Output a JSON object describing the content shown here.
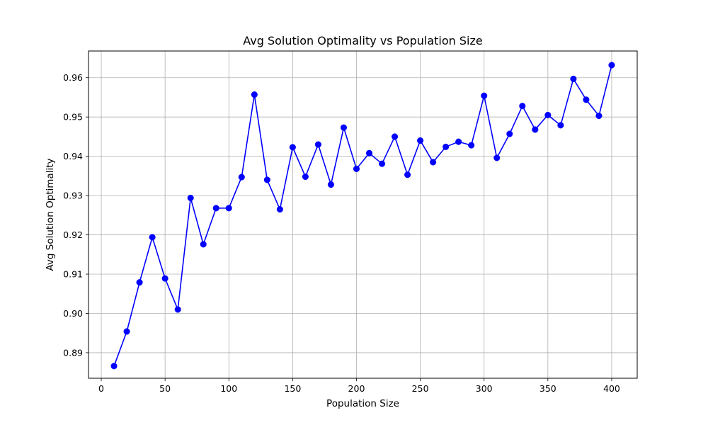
{
  "chart_data": {
    "type": "line",
    "title": "Avg Solution Optimality vs Population Size",
    "xlabel": "Population Size",
    "ylabel": "Avg Solution Optimality",
    "xlim": [
      -10,
      420
    ],
    "ylim": [
      0.8835,
      0.9668
    ],
    "xticks": [
      0,
      50,
      100,
      150,
      200,
      250,
      300,
      350,
      400
    ],
    "xtick_labels": [
      "0",
      "50",
      "100",
      "150",
      "200",
      "250",
      "300",
      "350",
      "400"
    ],
    "yticks": [
      0.89,
      0.9,
      0.91,
      0.92,
      0.93,
      0.94,
      0.95,
      0.96
    ],
    "ytick_labels": [
      "0.89",
      "0.90",
      "0.91",
      "0.92",
      "0.93",
      "0.94",
      "0.95",
      "0.96"
    ],
    "grid": true,
    "series": [
      {
        "color": "#0000ff",
        "marker": "circle",
        "x": [
          10,
          20,
          30,
          40,
          50,
          60,
          70,
          80,
          90,
          100,
          110,
          120,
          130,
          140,
          150,
          160,
          170,
          180,
          190,
          200,
          210,
          220,
          230,
          240,
          250,
          260,
          270,
          280,
          290,
          300,
          310,
          320,
          330,
          340,
          350,
          360,
          370,
          380,
          390,
          400
        ],
        "y": [
          0.8866,
          0.8954,
          0.9079,
          0.9194,
          0.9089,
          0.901,
          0.9294,
          0.9176,
          0.9268,
          0.9268,
          0.9347,
          0.9557,
          0.934,
          0.9265,
          0.9423,
          0.9348,
          0.943,
          0.9328,
          0.9473,
          0.9368,
          0.9408,
          0.9381,
          0.945,
          0.9353,
          0.944,
          0.9385,
          0.9424,
          0.9437,
          0.9428,
          0.9554,
          0.9396,
          0.9457,
          0.9528,
          0.9468,
          0.9505,
          0.9479,
          0.9597,
          0.9544,
          0.9503,
          0.9632
        ]
      }
    ]
  }
}
